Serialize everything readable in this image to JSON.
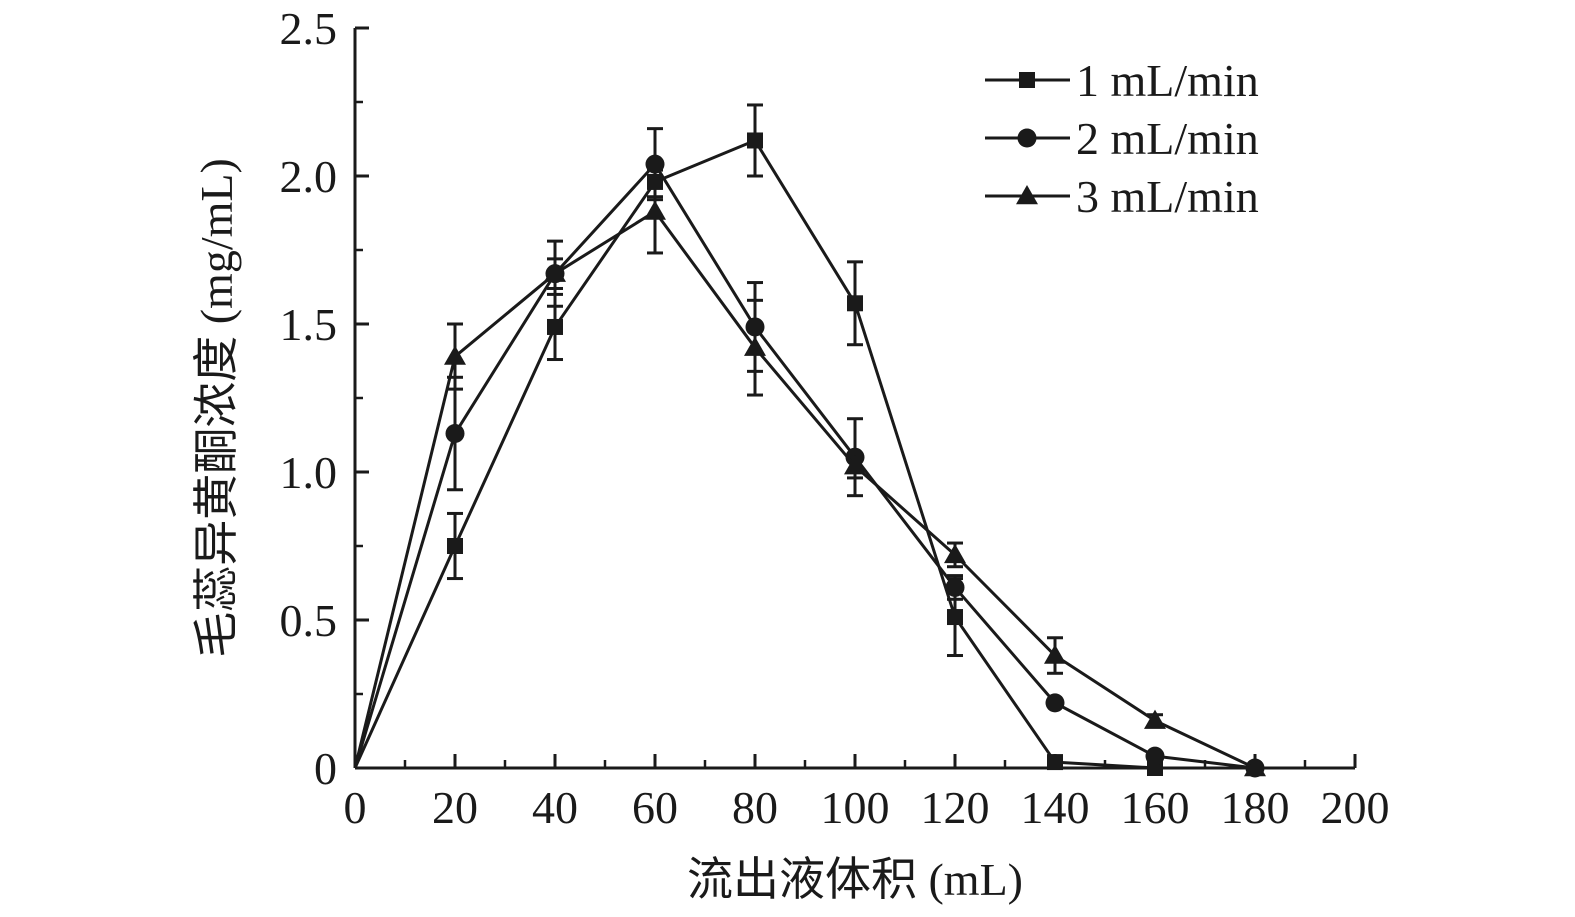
{
  "chart_data": {
    "type": "line",
    "title": "",
    "xlabel": "流出液体积 (mL)",
    "ylabel": "毛蕊异黄酮浓度 (mg/mL)",
    "xlim": [
      0,
      200
    ],
    "ylim": [
      0,
      2.5
    ],
    "xticks": [
      0,
      20,
      40,
      60,
      80,
      100,
      120,
      140,
      160,
      180,
      200
    ],
    "yticks": [
      0,
      0.5,
      1.0,
      1.5,
      2.0,
      2.5
    ],
    "xtick_labels": [
      "0",
      "20",
      "40",
      "60",
      "80",
      "100",
      "120",
      "140",
      "160",
      "180",
      "200"
    ],
    "ytick_labels": [
      "0",
      "0.5",
      "1.0",
      "1.5",
      "2.0",
      "2.5"
    ],
    "grid": false,
    "legend_position": "top-right",
    "series": [
      {
        "name": "1 mL/min",
        "marker": "square",
        "x": [
          0,
          20,
          40,
          60,
          80,
          100,
          120,
          140,
          160
        ],
        "y": [
          0,
          0.75,
          1.49,
          1.98,
          2.12,
          1.57,
          0.51,
          0.02,
          0
        ],
        "error": [
          0,
          0.11,
          0.11,
          0.05,
          0.12,
          0.14,
          0.13,
          0,
          0
        ]
      },
      {
        "name": "2 mL/min",
        "marker": "circle",
        "x": [
          0,
          20,
          40,
          60,
          80,
          100,
          120,
          140,
          160,
          180
        ],
        "y": [
          0,
          1.13,
          1.67,
          2.04,
          1.49,
          1.05,
          0.61,
          0.22,
          0.04,
          0
        ],
        "error": [
          0,
          0.19,
          0.11,
          0.12,
          0.15,
          0.13,
          0.04,
          0,
          0,
          0
        ]
      },
      {
        "name": "3 mL/min",
        "marker": "triangle",
        "x": [
          0,
          20,
          40,
          60,
          80,
          100,
          120,
          140,
          160,
          180
        ],
        "y": [
          0,
          1.39,
          1.67,
          1.88,
          1.42,
          1.02,
          0.72,
          0.38,
          0.16,
          0
        ],
        "error": [
          0,
          0.11,
          0.05,
          0.14,
          0.16,
          0.04,
          0.04,
          0.06,
          0.02,
          0
        ]
      }
    ],
    "colors": {
      "line": "#1a1a1a",
      "background": "#ffffff"
    }
  }
}
